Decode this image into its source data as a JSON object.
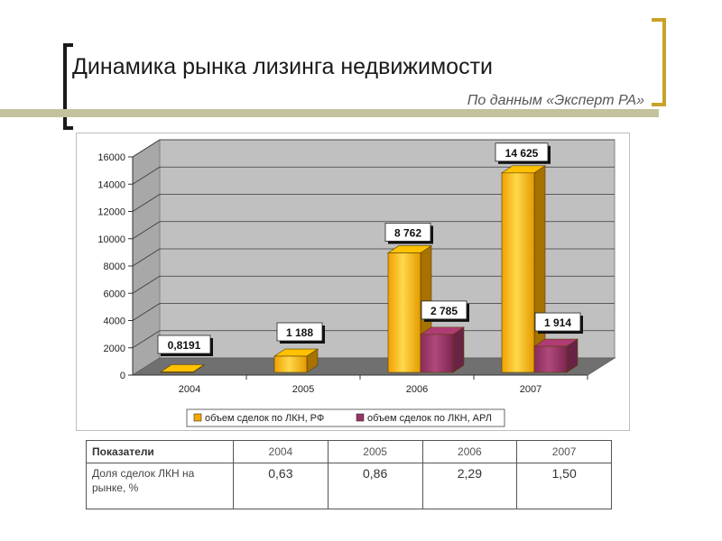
{
  "slide": {
    "title": "Динамика рынка лизинга недвижимости",
    "subtitle": "По данным «Эксперт РА»"
  },
  "colors": {
    "series1": "#f5a800",
    "series2": "#993366",
    "bracket_left": "#1a1a1a",
    "bracket_right": "#c9a227",
    "rule": "#c4c29c"
  },
  "chart_data": {
    "type": "bar",
    "style": "3d-clustered-column",
    "categories": [
      "2004",
      "2005",
      "2006",
      "2007"
    ],
    "ylim": [
      0,
      16000
    ],
    "yticks": [
      "0",
      "2000",
      "4000",
      "6000",
      "8000",
      "10000",
      "12000",
      "14000",
      "16000"
    ],
    "grid": true,
    "legend_position": "bottom",
    "series": [
      {
        "name": "объем сделок по ЛКН, РФ",
        "values": [
          0.8191,
          1188,
          8762,
          14625
        ],
        "labels": [
          "0,8191",
          "1 188",
          "8 762",
          "14 625"
        ]
      },
      {
        "name": "объем сделок по ЛКН, АРЛ",
        "values": [
          null,
          null,
          2785,
          1914
        ],
        "labels": [
          "",
          "",
          "2 785",
          "1 914"
        ]
      }
    ]
  },
  "table": {
    "header": "Показатели",
    "years": [
      "2004",
      "2005",
      "2006",
      "2007"
    ],
    "row_label": "Доля сделок ЛКН на рынке, %",
    "row_values": [
      "0,63",
      "0,86",
      "2,29",
      "1,50"
    ]
  }
}
